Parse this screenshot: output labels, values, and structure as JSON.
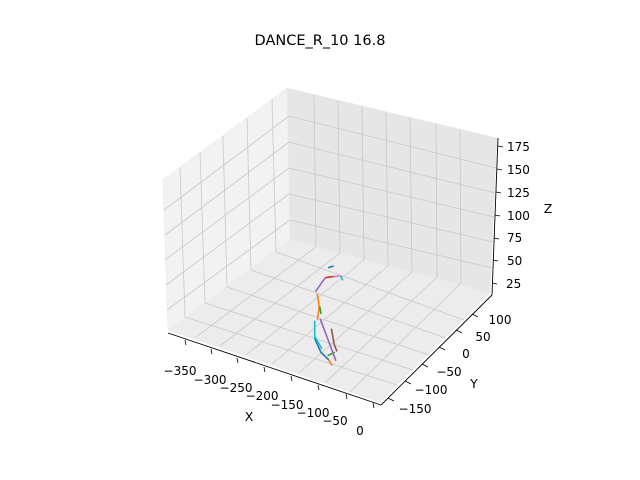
{
  "chart_data": {
    "type": "line",
    "projection": "3d",
    "title": "DANCE_R_10 16.8",
    "xlabel": "X",
    "ylabel": "Y",
    "zlabel": "Z",
    "x_ticks": [
      "−350",
      "−300",
      "−250",
      "−200",
      "−150",
      "−100",
      "−50",
      "0"
    ],
    "y_ticks": [
      "−150",
      "−100",
      "−50",
      "0",
      "50",
      "100"
    ],
    "z_ticks": [
      "25",
      "50",
      "75",
      "100",
      "125",
      "150",
      "175"
    ],
    "grid": true,
    "series": [
      {
        "color": "#1f77b4",
        "points": [
          [
            -95,
            -5,
            110
          ],
          [
            -85,
            -5,
            110
          ]
        ]
      },
      {
        "color": "#1f77b4",
        "points": [
          [
            -110,
            -20,
            40
          ],
          [
            -105,
            -10,
            20
          ],
          [
            -100,
            5,
            5
          ]
        ]
      },
      {
        "color": "#ff7f0e",
        "points": [
          [
            -115,
            -5,
            85
          ],
          [
            -112,
            -5,
            75
          ],
          [
            -108,
            -10,
            70
          ],
          [
            -105,
            -20,
            60
          ]
        ]
      },
      {
        "color": "#ff7f0e",
        "points": [
          [
            -100,
            5,
            5
          ],
          [
            -96,
            8,
            -3
          ]
        ]
      },
      {
        "color": "#2ca02c",
        "points": [
          [
            -110,
            -5,
            70
          ],
          [
            -106,
            -8,
            62
          ]
        ]
      },
      {
        "color": "#2ca02c",
        "points": [
          [
            -102,
            5,
            10
          ],
          [
            -92,
            10,
            10
          ]
        ]
      },
      {
        "color": "#d62728",
        "points": [
          [
            -100,
            -5,
            100
          ],
          [
            -88,
            0,
            97
          ]
        ]
      },
      {
        "color": "#9467bd",
        "points": [
          [
            -118,
            -5,
            88
          ],
          [
            -100,
            -5,
            100
          ]
        ]
      },
      {
        "color": "#9467bd",
        "points": [
          [
            -100,
            -20,
            60
          ],
          [
            -95,
            -5,
            30
          ],
          [
            -90,
            10,
            0
          ]
        ]
      },
      {
        "color": "#8c564b",
        "points": [
          [
            -92,
            0,
            40
          ],
          [
            -90,
            5,
            20
          ],
          [
            -88,
            10,
            10
          ]
        ]
      },
      {
        "color": "#e377c2",
        "points": [
          [
            -88,
            0,
            97
          ],
          [
            -75,
            0,
            95
          ]
        ]
      },
      {
        "color": "#17becf",
        "points": [
          [
            -110,
            -20,
            60
          ],
          [
            -110,
            -20,
            40
          ]
        ]
      },
      {
        "color": "#17becf",
        "points": [
          [
            -75,
            0,
            95
          ],
          [
            -70,
            -2,
            90
          ]
        ]
      },
      {
        "color": "#17becf",
        "points": [
          [
            -112,
            -15,
            40
          ],
          [
            -106,
            -5,
            22
          ]
        ]
      }
    ]
  }
}
